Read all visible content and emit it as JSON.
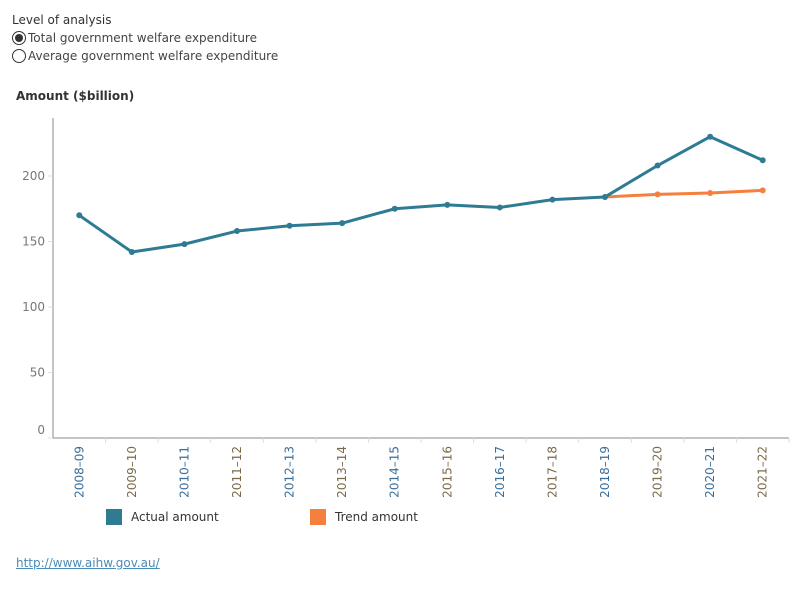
{
  "filter": {
    "title": "Level of analysis",
    "options": [
      {
        "label": "Total government welfare expenditure",
        "selected": true
      },
      {
        "label": "Average government welfare expenditure",
        "selected": false
      }
    ]
  },
  "footer": {
    "url": "http://www.aihw.gov.au/"
  },
  "chart_data": {
    "type": "line",
    "ylabel": "Amount ($billion)",
    "ylim": [
      0,
      240
    ],
    "yticks": [
      0,
      50,
      100,
      150,
      200
    ],
    "categories": [
      "2008–09",
      "2009–10",
      "2010–11",
      "2011–12",
      "2012–13",
      "2013–14",
      "2014–15",
      "2015–16",
      "2016–17",
      "2017–18",
      "2018–19",
      "2019–20",
      "2020–21",
      "2021–22"
    ],
    "series": [
      {
        "name": "Actual amount",
        "color": "#2e7b93",
        "values": [
          170,
          142,
          148,
          158,
          162,
          164,
          175,
          178,
          176,
          182,
          184,
          208,
          230,
          212
        ]
      },
      {
        "name": "Trend amount",
        "color": "#f5803e",
        "values": [
          null,
          null,
          null,
          null,
          null,
          null,
          null,
          null,
          null,
          null,
          184,
          186,
          187,
          189
        ]
      }
    ],
    "legend": "bottom",
    "grid": false
  }
}
